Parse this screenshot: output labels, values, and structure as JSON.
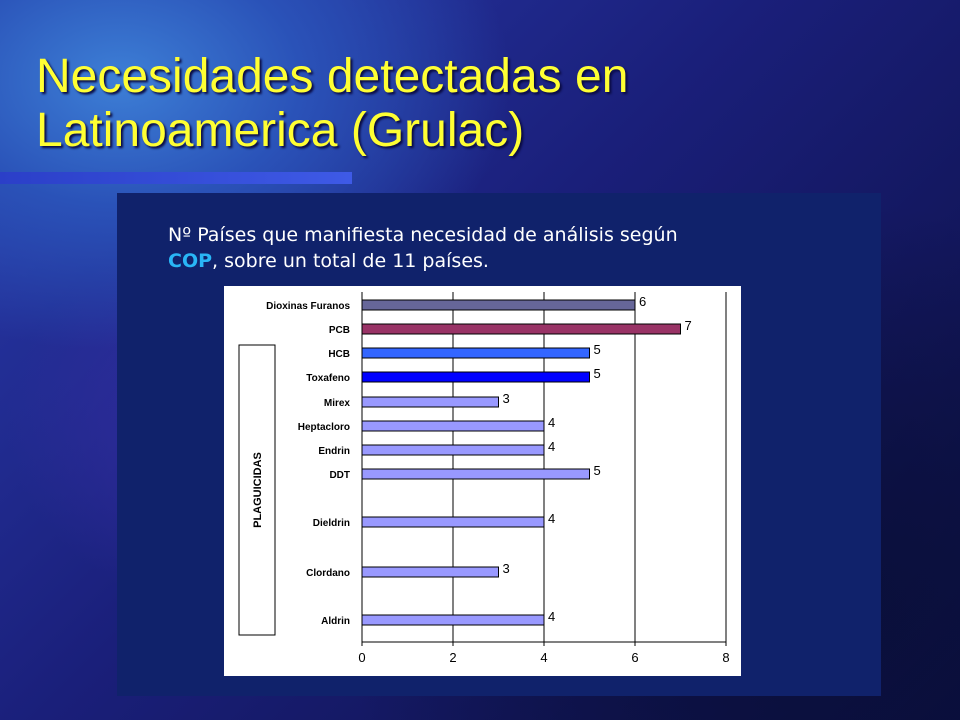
{
  "title_line1": "Necesidades detectadas en",
  "title_line2": "Latinoamerica (Grulac)",
  "subtitle": {
    "line1": "Nº Países que manifiesta necesidad de análisis según",
    "highlight": "COP",
    "line2_rest": ", sobre un total de 11 países."
  },
  "chart_data": {
    "type": "bar",
    "orientation": "horizontal",
    "categories": [
      "Dioxinas Furanos",
      "PCB",
      "HCB",
      "Toxafeno",
      "Mirex",
      "Heptacloro",
      "Endrin",
      "DDT",
      "Dieldrin",
      "Clordano",
      "Aldrin"
    ],
    "values": [
      6,
      7,
      5,
      5,
      3,
      4,
      4,
      5,
      4,
      3,
      4
    ],
    "bar_colors": [
      "#666699",
      "#993366",
      "#3366ff",
      "#0000ff",
      "#9999ff",
      "#9999ff",
      "#9999ff",
      "#9999ff",
      "#9999ff",
      "#9999ff",
      "#9999ff"
    ],
    "group_label": "PLAGUICIDAS",
    "xlim": [
      0,
      8
    ],
    "xticks": [
      "0",
      "2",
      "4",
      "6",
      "8"
    ],
    "grid": true
  }
}
